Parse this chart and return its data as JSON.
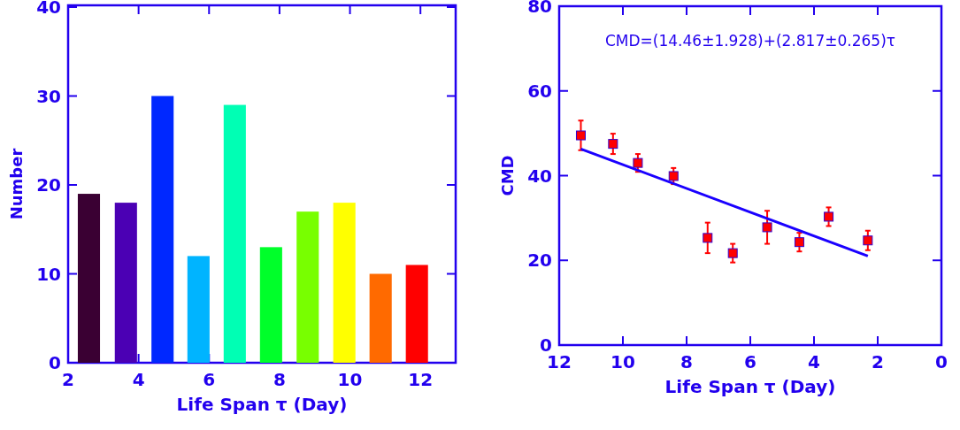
{
  "chart_data": [
    {
      "type": "bar",
      "xlabel": "Life Span τ (Day)",
      "ylabel": "Number",
      "x": [
        2.59,
        3.64,
        4.68,
        5.7,
        6.73,
        7.76,
        8.8,
        9.84,
        10.87,
        11.9
      ],
      "values": [
        19,
        18,
        30,
        12,
        29,
        13,
        17,
        18,
        10,
        11
      ],
      "colors": [
        "#3a0033",
        "#4b00b4",
        "#0028ff",
        "#00b4ff",
        "#00ffb4",
        "#00ff2a",
        "#78ff00",
        "#ffff00",
        "#ff6a00",
        "#ff0000"
      ],
      "xlim": [
        2,
        13
      ],
      "xticks": [
        2,
        4,
        6,
        8,
        10,
        12
      ],
      "ylim": [
        0,
        40.2
      ],
      "yticks": [
        0,
        10,
        20,
        30,
        40
      ]
    },
    {
      "type": "scatter",
      "xlabel": "Life Span τ (Day)",
      "ylabel": "CMD",
      "annotations": [
        "CMD=(14.46±1.928)+(2.817±0.265)τ"
      ],
      "xlim": [
        12,
        0
      ],
      "xticks": [
        12,
        10,
        8,
        6,
        4,
        2,
        0
      ],
      "ylim": [
        0,
        80
      ],
      "yticks": [
        0,
        20,
        40,
        60,
        80
      ],
      "series": [
        {
          "marker": "square",
          "color": "#ff0000",
          "x": [
            11.32,
            10.31,
            9.53,
            8.41,
            7.34,
            6.55,
            5.47,
            4.46,
            3.54,
            2.31
          ],
          "values": [
            49.5,
            47.5,
            43,
            39.9,
            25.3,
            21.7,
            27.8,
            24.3,
            30.3,
            24.7
          ],
          "errors": [
            3.5,
            2.4,
            2.1,
            1.9,
            3.6,
            2.2,
            3.9,
            2.2,
            2.2,
            2.3
          ]
        },
        {
          "type": "line",
          "color": "#1a00ff",
          "x": [
            11.32,
            2.31
          ],
          "values": [
            46.3,
            21.0
          ]
        }
      ]
    }
  ]
}
